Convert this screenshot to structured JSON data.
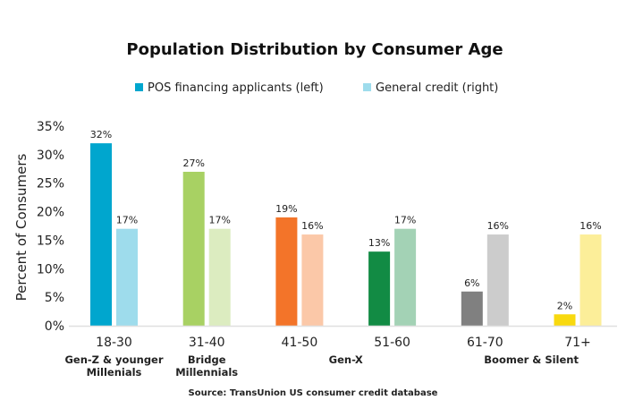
{
  "chart_data": {
    "type": "bar",
    "title": "Population Distribution by Consumer Age",
    "ylabel": "Percent of Consumers",
    "xlabel": "",
    "ylim": [
      0,
      35
    ],
    "yticks": [
      "0%",
      "5%",
      "10%",
      "15%",
      "20%",
      "25%",
      "30%",
      "35%"
    ],
    "ytick_values": [
      0,
      5,
      10,
      15,
      20,
      25,
      30,
      35
    ],
    "grid": false,
    "legend_placement": "top-center",
    "categories": [
      "18-30",
      "31-40",
      "41-50",
      "51-60",
      "61-70",
      "71+"
    ],
    "series": [
      {
        "name": "POS financing applicants (left)",
        "values": [
          32,
          27,
          19,
          13,
          6,
          2
        ],
        "labels": [
          "32%",
          "27%",
          "19%",
          "13%",
          "6%",
          "2%"
        ],
        "colors": [
          "#00a6ce",
          "#a8d163",
          "#f37429",
          "#128b44",
          "#808080",
          "#f8d90f"
        ]
      },
      {
        "name": "General credit (right)",
        "values": [
          17,
          17,
          16,
          17,
          16,
          16
        ],
        "labels": [
          "17%",
          "17%",
          "16%",
          "17%",
          "16%",
          "16%"
        ],
        "colors": [
          "#9edcec",
          "#dcecc0",
          "#fbc8a8",
          "#a3d2b5",
          "#cccccc",
          "#fcee99"
        ]
      }
    ],
    "legend_colors": [
      "#00a6ce",
      "#9edcec"
    ],
    "generations": [
      {
        "lines": [
          "Gen-Z & younger",
          "Millenials"
        ],
        "categories": [
          "18-30"
        ]
      },
      {
        "lines": [
          "Bridge",
          "Millennials"
        ],
        "categories": [
          "31-40"
        ]
      },
      {
        "lines": [
          "Gen-X"
        ],
        "categories": [
          "41-50",
          "51-60"
        ]
      },
      {
        "lines": [
          "Boomer & Silent"
        ],
        "categories": [
          "61-70",
          "71+"
        ]
      }
    ],
    "source": "Source: TransUnion US consumer credit database"
  }
}
